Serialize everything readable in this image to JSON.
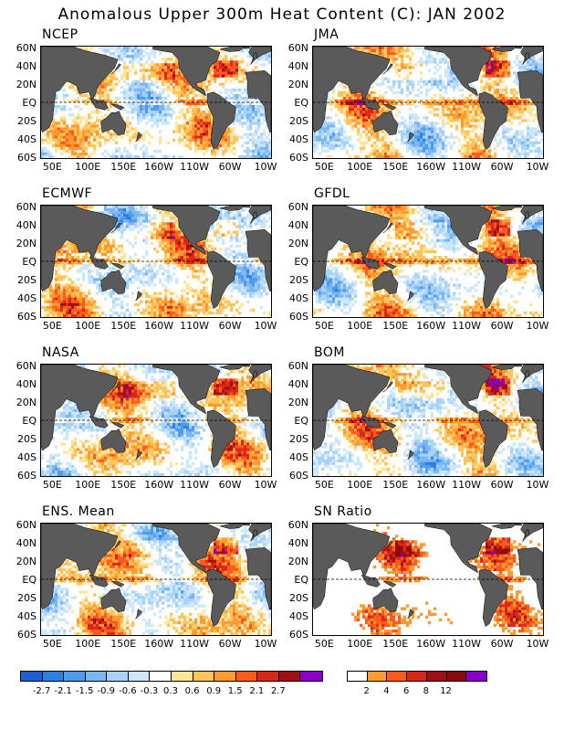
{
  "title": "Anomalous Upper 300m Heat Content (C): JAN 2002",
  "lat_labels": [
    "60N",
    "40N",
    "20N",
    "EQ",
    "20S",
    "40S",
    "60S"
  ],
  "lon_labels": [
    "50E",
    "100E",
    "150E",
    "160W",
    "110W",
    "60W",
    "10W"
  ],
  "panels": [
    {
      "name": "NCEP",
      "seed": 11
    },
    {
      "name": "JMA",
      "seed": 23
    },
    {
      "name": "ECMWF",
      "seed": 37
    },
    {
      "name": "GFDL",
      "seed": 41
    },
    {
      "name": "NASA",
      "seed": 53
    },
    {
      "name": "BOM",
      "seed": 67
    },
    {
      "name": "ENS. Mean",
      "seed": 79
    },
    {
      "name": "SN Ratio",
      "seed": 97,
      "type": "snr"
    }
  ],
  "colors": {
    "land": "#5a5a5a",
    "anomaly_scale": [
      "#1a5fd4",
      "#2f7fe0",
      "#4f9aec",
      "#7ab6f2",
      "#a8d2f7",
      "#cce6fa",
      "#ffffff",
      "#ffe59a",
      "#ffc45c",
      "#ff9a2e",
      "#ff5a1e",
      "#d8281a",
      "#a00f12",
      "#8b00c8"
    ],
    "snr_scale": [
      "#ffffff",
      "#ff9a2e",
      "#ff5a1e",
      "#d8281a",
      "#a00f12",
      "#8a0a10",
      "#8b00c8"
    ]
  },
  "colorbar_anomaly": {
    "labels": [
      "-2.7",
      "-2.1",
      "-1.5",
      "-0.9",
      "-0.6",
      "-0.3",
      "0.3",
      "0.6",
      "0.9",
      "1.5",
      "2.1",
      "2.7"
    ]
  },
  "colorbar_snr": {
    "labels": [
      "2",
      "4",
      "6",
      "8",
      "12"
    ]
  }
}
